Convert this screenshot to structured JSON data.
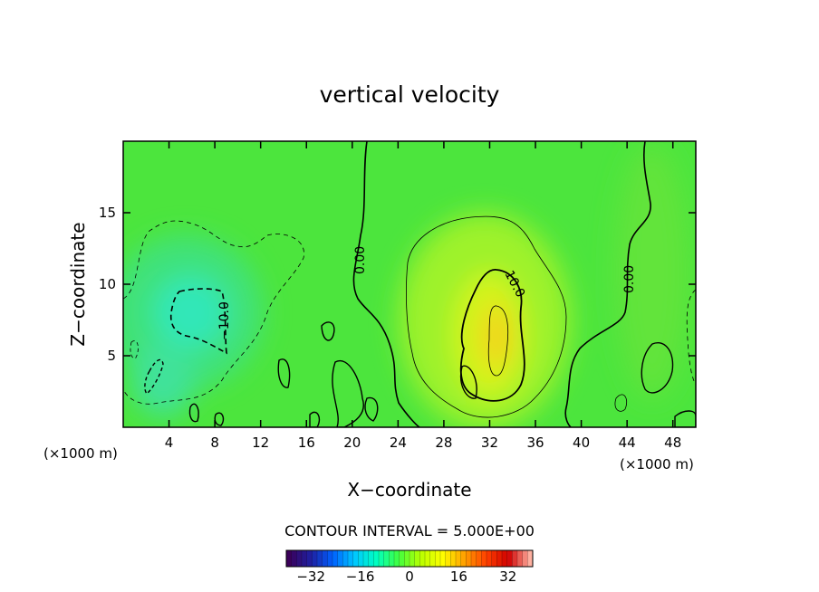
{
  "chart_data": {
    "type": "heatmap",
    "title": "vertical velocity",
    "xlabel": "X−coordinate",
    "ylabel": "Z−coordinate",
    "x_unit": "(×1000 m)",
    "y_unit": "(×1000 m)",
    "xlim": [
      0,
      50
    ],
    "ylim": [
      0,
      20
    ],
    "x_ticks": [
      4,
      8,
      12,
      16,
      20,
      24,
      28,
      32,
      36,
      40,
      44,
      48
    ],
    "y_ticks": [
      5,
      10,
      15
    ],
    "x_tick_labels": [
      "4",
      "8",
      "12",
      "16",
      "20",
      "24",
      "28",
      "32",
      "36",
      "40",
      "44",
      "48"
    ],
    "y_tick_labels": [
      "5",
      "10",
      "15"
    ],
    "contour_interval_label": "CONTOUR INTERVAL = 5.000E+00",
    "contour_labels": [
      "0.00",
      "10.0",
      "−10.0",
      "0.00"
    ],
    "colorbar": {
      "range": [
        -40,
        40
      ],
      "ticks": [
        -32,
        -16,
        0,
        16,
        32
      ],
      "tick_labels": [
        "−32",
        "−16",
        "0",
        "16",
        "32"
      ],
      "colors": [
        "#3b005a",
        "#1f1fa0",
        "#0060ff",
        "#00c8ff",
        "#00ffc0",
        "#40ff40",
        "#b8ff00",
        "#ffff00",
        "#ffa000",
        "#ff4000",
        "#d00000",
        "#ffb0a0"
      ]
    },
    "features": [
      {
        "kind": "updraft",
        "x": 32,
        "z": 7,
        "peak": 12
      },
      {
        "kind": "updraft_region",
        "x": 31,
        "z": 8,
        "value": 5
      },
      {
        "kind": "downdraft",
        "x": 6,
        "z": 8,
        "peak": -10
      },
      {
        "kind": "downdraft_region",
        "x": 8,
        "z": 9,
        "value": -5
      }
    ]
  }
}
